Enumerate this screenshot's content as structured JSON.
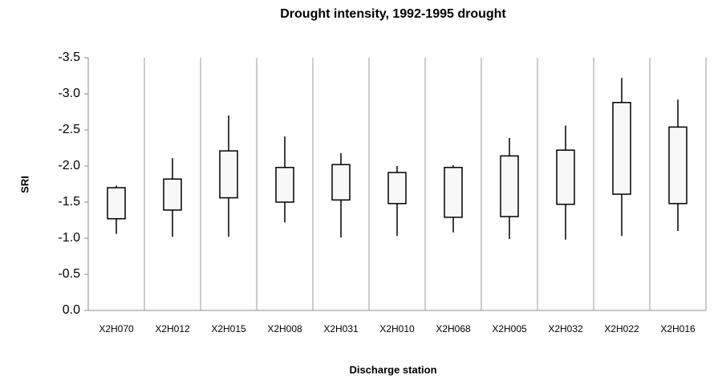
{
  "chart_data": {
    "type": "box",
    "title": "Drought intensity, 1992-1995 drought",
    "xlabel": "Discharge station",
    "ylabel": "SRI",
    "categories": [
      "X2H070",
      "X2H012",
      "X2H015",
      "X2H008",
      "X2H031",
      "X2H010",
      "X2H068",
      "X2H005",
      "X2H032",
      "X2H022",
      "X2H016"
    ],
    "min": [
      -1.73,
      -2.11,
      -2.7,
      -2.41,
      -2.18,
      -2.0,
      -2.01,
      -2.39,
      -2.56,
      -3.22,
      -2.92
    ],
    "q1": [
      -1.7,
      -1.82,
      -2.21,
      -1.98,
      -2.02,
      -1.91,
      -1.98,
      -2.14,
      -2.22,
      -2.88,
      -2.54
    ],
    "q3": [
      -1.27,
      -1.39,
      -1.56,
      -1.5,
      -1.53,
      -1.48,
      -1.29,
      -1.3,
      -1.47,
      -1.61,
      -1.48
    ],
    "max": [
      -1.06,
      -1.02,
      -1.02,
      -1.22,
      -1.01,
      -1.03,
      -1.08,
      -0.99,
      -0.98,
      -1.03,
      -1.1
    ],
    "color": "#f8f8f8",
    "ylim": [
      0,
      -3.5
    ],
    "yticks": [
      {
        "value": 0,
        "label": "0.0"
      },
      -0.5,
      {
        "value": -1,
        "label": "-1.0"
      },
      -1.5,
      {
        "value": -2,
        "label": "-2.0"
      },
      -2.5,
      {
        "value": -3,
        "label": "-3.0"
      },
      -3.5
    ],
    "grid": true
  }
}
